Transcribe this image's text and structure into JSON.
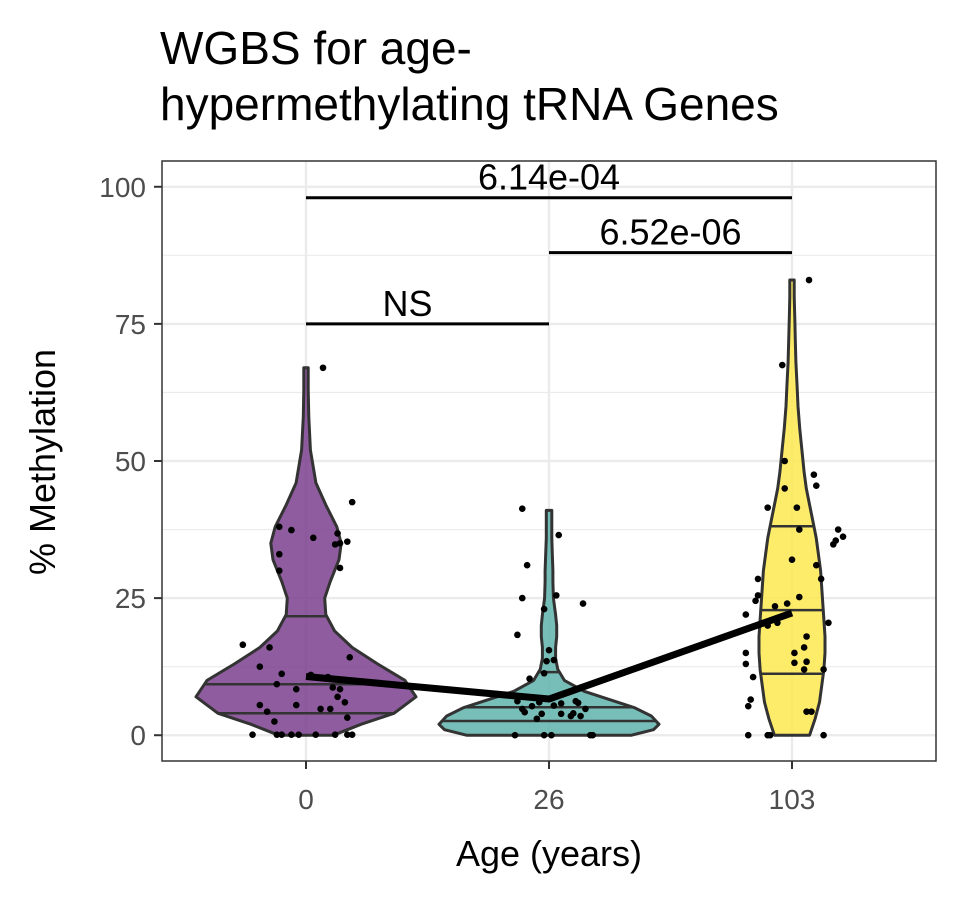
{
  "chart_data": {
    "type": "violin",
    "title": "WGBS for age-\nhypermethylating tRNA Genes",
    "xlabel": "Age (years)",
    "ylabel": "% Methylation",
    "categories": [
      "0",
      "26",
      "103"
    ],
    "ylim": [
      -4.7,
      104.7
    ],
    "yticks": [
      0,
      25,
      50,
      75,
      100
    ],
    "grid": true,
    "legend": "none",
    "colors": {
      "0": "#7b3f8e",
      "26": "#5fb3ad",
      "103": "#fce94f",
      "outline": "#333333",
      "points": "#000000",
      "mean_line": "#000000"
    },
    "means": [
      10.7,
      6.6,
      22.3
    ],
    "violins": [
      {
        "category": "0",
        "quantiles": [
          4.0,
          9.3,
          21.7
        ],
        "profile": [
          [
            0,
            0.25
          ],
          [
            2,
            0.5
          ],
          [
            4,
            0.8
          ],
          [
            7,
            1.0
          ],
          [
            10,
            0.9
          ],
          [
            13,
            0.65
          ],
          [
            16,
            0.42
          ],
          [
            19,
            0.26
          ],
          [
            22,
            0.18
          ],
          [
            25,
            0.17
          ],
          [
            28,
            0.22
          ],
          [
            32,
            0.3
          ],
          [
            35,
            0.32
          ],
          [
            38,
            0.28
          ],
          [
            42,
            0.18
          ],
          [
            46,
            0.09
          ],
          [
            52,
            0.04
          ],
          [
            58,
            0.025
          ],
          [
            63,
            0.02
          ],
          [
            67,
            0.02
          ]
        ],
        "points": [
          [
            -0.22,
            0.1
          ],
          [
            -0.12,
            0.1
          ],
          [
            -0.1,
            0.1
          ],
          [
            -0.06,
            0.1
          ],
          [
            -0.03,
            0.1
          ],
          [
            0.04,
            0.1
          ],
          [
            0.12,
            0.1
          ],
          [
            0.17,
            0.1
          ],
          [
            0.19,
            0.1
          ],
          [
            -0.13,
            2.5
          ],
          [
            -0.19,
            5.5
          ],
          [
            -0.04,
            5.5
          ],
          [
            0.06,
            4.8
          ],
          [
            0.1,
            4.8
          ],
          [
            0.17,
            3.2
          ],
          [
            -0.16,
            4.3
          ],
          [
            -0.1,
            11.2
          ],
          [
            0.02,
            11.0
          ],
          [
            0.09,
            10.6
          ],
          [
            0.14,
            8.4
          ],
          [
            0.13,
            7.0
          ],
          [
            0.16,
            6.0
          ],
          [
            0.11,
            8.7
          ],
          [
            -0.04,
            8.4
          ],
          [
            -0.19,
            12.5
          ],
          [
            -0.12,
            9.3
          ],
          [
            0.18,
            14.2
          ],
          [
            -0.15,
            16.0
          ],
          [
            -0.26,
            16.5
          ],
          [
            -0.11,
            30.0
          ],
          [
            0.14,
            35.0
          ],
          [
            0.17,
            35.3
          ],
          [
            0.12,
            34.8
          ],
          [
            0.19,
            42.5
          ],
          [
            0.14,
            30.5
          ],
          [
            -0.11,
            33.0
          ],
          [
            -0.11,
            38.0
          ],
          [
            -0.06,
            37.4
          ],
          [
            0.03,
            36.0
          ],
          [
            0.07,
            67.0
          ],
          [
            0.13,
            36.8
          ]
        ]
      },
      {
        "category": "26",
        "quantiles": [
          2.6,
          5.1,
          11.5
        ],
        "profile": [
          [
            0,
            0.75
          ],
          [
            1,
            0.95
          ],
          [
            2,
            1.0
          ],
          [
            3.5,
            0.93
          ],
          [
            5,
            0.78
          ],
          [
            6.5,
            0.55
          ],
          [
            8,
            0.32
          ],
          [
            10,
            0.14
          ],
          [
            12,
            0.08
          ],
          [
            14,
            0.06
          ],
          [
            16,
            0.06
          ],
          [
            18,
            0.07
          ],
          [
            20,
            0.07
          ],
          [
            22,
            0.06
          ],
          [
            25,
            0.04
          ],
          [
            28,
            0.035
          ],
          [
            30,
            0.035
          ],
          [
            33,
            0.03
          ],
          [
            36,
            0.025
          ],
          [
            40,
            0.025
          ],
          [
            41,
            0.025
          ]
        ],
        "points": [
          [
            -0.14,
            0.0
          ],
          [
            -0.02,
            0.0
          ],
          [
            0.01,
            0.0
          ],
          [
            0.17,
            0.0
          ],
          [
            0.18,
            0.0
          ],
          [
            -0.05,
            3.0
          ],
          [
            0.09,
            3.5
          ],
          [
            0.13,
            3.5
          ],
          [
            0.05,
            3.9
          ],
          [
            0.1,
            4.0
          ],
          [
            0.12,
            5.9
          ],
          [
            -0.03,
            3.9
          ],
          [
            -0.07,
            5.3
          ],
          [
            0.05,
            5.8
          ],
          [
            -0.1,
            4.2
          ],
          [
            0.11,
            6.2
          ],
          [
            0.02,
            5.4
          ],
          [
            -0.02,
            11.3
          ],
          [
            -0.04,
            6.0
          ],
          [
            -0.11,
            4.8
          ],
          [
            -0.13,
            6.2
          ],
          [
            0.15,
            4.8
          ],
          [
            -0.01,
            13.5
          ],
          [
            -0.08,
            10.3
          ],
          [
            0.02,
            13.7
          ],
          [
            0.0,
            15.5
          ],
          [
            -0.13,
            18.3
          ],
          [
            -0.02,
            23.0
          ],
          [
            0.14,
            24.0
          ],
          [
            -0.11,
            25.0
          ],
          [
            0.03,
            25.5
          ],
          [
            -0.09,
            31.0
          ],
          [
            0.04,
            36.5
          ],
          [
            -0.11,
            41.3
          ]
        ]
      },
      {
        "category": "103",
        "quantiles": [
          11.2,
          22.8,
          38.1
        ],
        "profile": [
          [
            0,
            0.16
          ],
          [
            3,
            0.21
          ],
          [
            6,
            0.25
          ],
          [
            9,
            0.27
          ],
          [
            12,
            0.29
          ],
          [
            15,
            0.3
          ],
          [
            18,
            0.3
          ],
          [
            21,
            0.29
          ],
          [
            24,
            0.28
          ],
          [
            27,
            0.27
          ],
          [
            30,
            0.26
          ],
          [
            33,
            0.24
          ],
          [
            36,
            0.22
          ],
          [
            39,
            0.19
          ],
          [
            42,
            0.16
          ],
          [
            45,
            0.13
          ],
          [
            48,
            0.11
          ],
          [
            52,
            0.09
          ],
          [
            56,
            0.07
          ],
          [
            60,
            0.055
          ],
          [
            64,
            0.045
          ],
          [
            68,
            0.035
          ],
          [
            72,
            0.03
          ],
          [
            76,
            0.025
          ],
          [
            80,
            0.02
          ],
          [
            83,
            0.02
          ]
        ],
        "points": [
          [
            -0.18,
            0.0
          ],
          [
            -0.09,
            0.0
          ],
          [
            -0.1,
            0.0
          ],
          [
            0.13,
            0.0
          ],
          [
            -0.18,
            5.3
          ],
          [
            -0.17,
            6.5
          ],
          [
            -0.16,
            10.6
          ],
          [
            -0.19,
            13.0
          ],
          [
            -0.19,
            15.0
          ],
          [
            -0.19,
            22.0
          ],
          [
            0.08,
            4.3
          ],
          [
            0.06,
            4.3
          ],
          [
            0.05,
            12.0
          ],
          [
            0.13,
            12.0
          ],
          [
            0.01,
            13.2
          ],
          [
            0.01,
            15.0
          ],
          [
            0.05,
            16.0
          ],
          [
            0.06,
            18.0
          ],
          [
            0.03,
            25.2
          ],
          [
            -0.06,
            20.5
          ],
          [
            0.15,
            20.5
          ],
          [
            -0.07,
            23.5
          ],
          [
            -0.1,
            20.0
          ],
          [
            -0.15,
            24.5
          ],
          [
            -0.14,
            25.5
          ],
          [
            -0.14,
            28.5
          ],
          [
            0.12,
            28.5
          ],
          [
            0.1,
            31.0
          ],
          [
            0.0,
            32.0
          ],
          [
            0.17,
            34.8
          ],
          [
            0.18,
            35.5
          ],
          [
            0.21,
            36.2
          ],
          [
            0.19,
            37.5
          ],
          [
            0.03,
            37.5
          ],
          [
            -0.1,
            41.5
          ],
          [
            0.02,
            41.5
          ],
          [
            -0.03,
            45.0
          ],
          [
            0.1,
            45.5
          ],
          [
            0.09,
            47.5
          ],
          [
            -0.03,
            50.0
          ],
          [
            -0.04,
            67.5
          ],
          [
            0.07,
            83.0
          ],
          [
            0.06,
            13.4
          ],
          [
            -0.02,
            24.0
          ]
        ]
      }
    ],
    "comparisons": [
      {
        "from": "0",
        "to": "103",
        "y": 98,
        "label": "6.14e-04"
      },
      {
        "from": "26",
        "to": "103",
        "y": 88,
        "label": "6.52e-06"
      },
      {
        "from": "0",
        "to": "26",
        "y": 75,
        "label": "NS"
      }
    ]
  }
}
